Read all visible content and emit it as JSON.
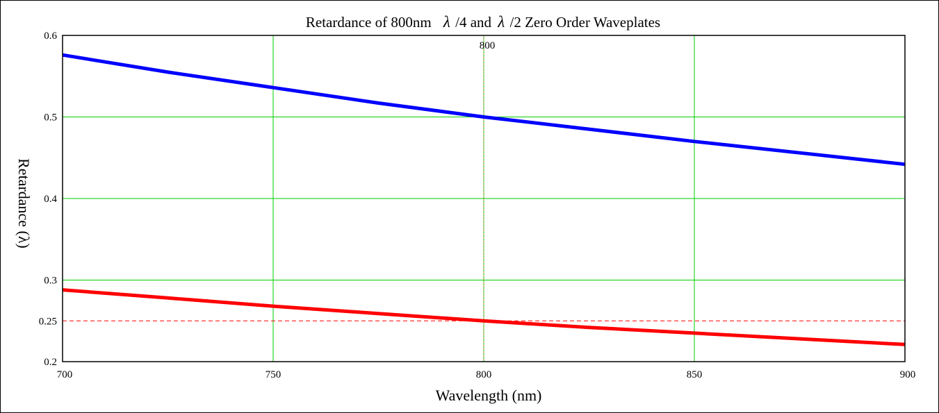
{
  "chart_data": {
    "type": "line",
    "title_parts": {
      "prefix": "Retardance of 800nm",
      "lambda1": "λ",
      "mid": "/4 and",
      "lambda2": "λ",
      "suffix": "/2 Zero Order Waveplates"
    },
    "xlabel": "Wavelength (nm)",
    "ylabel": "Retardance (λ)",
    "xlim": [
      700,
      900
    ],
    "ylim": [
      0.2,
      0.6
    ],
    "x_ticks": [
      700,
      750,
      800,
      850,
      900
    ],
    "x_tick_labels": [
      "700",
      "750",
      "800",
      "850",
      "900"
    ],
    "y_ticks": [
      0.2,
      0.25,
      0.3,
      0.4,
      0.5,
      0.6
    ],
    "y_tick_labels": [
      "0.2",
      "0.25",
      "0.3",
      "0.4",
      "0.5",
      "0.6"
    ],
    "grid": true,
    "grid_x": [
      750,
      800,
      850
    ],
    "grid_y": [
      0.3,
      0.4,
      0.5
    ],
    "marker_x": {
      "value": 800,
      "label": "800"
    },
    "marker_y": {
      "value": 0.25,
      "label": "0.25"
    },
    "series": [
      {
        "color": "#0000ff",
        "x": [
          700,
          725,
          750,
          775,
          800,
          825,
          850,
          875,
          900
        ],
        "values": [
          0.576,
          0.555,
          0.536,
          0.517,
          0.5,
          0.485,
          0.47,
          0.456,
          0.442
        ]
      },
      {
        "color": "#ff0000",
        "x": [
          700,
          725,
          750,
          775,
          800,
          825,
          850,
          875,
          900
        ],
        "values": [
          0.288,
          0.278,
          0.268,
          0.259,
          0.25,
          0.242,
          0.235,
          0.228,
          0.221
        ]
      }
    ],
    "colors": {
      "grid": "#00cc00",
      "marker_x": "#999933",
      "marker_y": "#ff0000",
      "axis": "#000000"
    }
  }
}
